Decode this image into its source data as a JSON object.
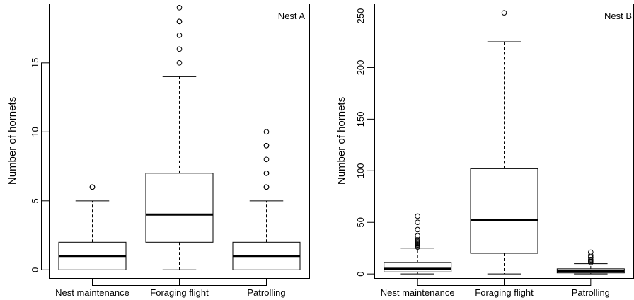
{
  "chart_data": [
    {
      "type": "box",
      "panel_label": "Nest A",
      "ylabel": "Number of hornets",
      "xlabel": "",
      "ylim": [
        -0.6,
        19.3
      ],
      "yticks": [
        0,
        5,
        10,
        15
      ],
      "categories": [
        "Nest maintenance",
        "Foraging flight",
        "Patrolling"
      ],
      "boxes": [
        {
          "category": "Nest maintenance",
          "whisker_low": 0,
          "q1": 0,
          "median": 1,
          "q3": 2,
          "whisker_high": 5,
          "outliers": [
            6,
            6
          ]
        },
        {
          "category": "Foraging flight",
          "whisker_low": 0,
          "q1": 2,
          "median": 4,
          "q3": 7,
          "whisker_high": 14,
          "outliers": [
            15,
            16,
            17,
            18,
            18,
            19
          ]
        },
        {
          "category": "Patrolling",
          "whisker_low": 0,
          "q1": 0,
          "median": 1,
          "q3": 2,
          "whisker_high": 5,
          "outliers": [
            6,
            6,
            7,
            7,
            8,
            9,
            9,
            10
          ]
        }
      ]
    },
    {
      "type": "box",
      "panel_label": "Nest B",
      "ylabel": "Number of hornets",
      "xlabel": "",
      "ylim": [
        -4,
        262
      ],
      "yticks": [
        0,
        50,
        100,
        150,
        200,
        250
      ],
      "categories": [
        "Nest maintenance",
        "Foraging flight",
        "Patrolling"
      ],
      "boxes": [
        {
          "category": "Nest maintenance",
          "whisker_low": 0,
          "q1": 2,
          "median": 5,
          "q3": 11,
          "whisker_high": 25,
          "outliers": [
            26,
            27,
            28,
            29,
            30,
            31,
            32,
            33,
            37,
            43,
            50,
            56
          ]
        },
        {
          "category": "Foraging flight",
          "whisker_low": 0,
          "q1": 20,
          "median": 52,
          "q3": 102,
          "whisker_high": 225,
          "outliers": [
            253
          ]
        },
        {
          "category": "Patrolling",
          "whisker_low": 0,
          "q1": 1,
          "median": 3,
          "q3": 5,
          "whisker_high": 10,
          "outliers": [
            11,
            12,
            13,
            14,
            16,
            18,
            21
          ]
        }
      ]
    }
  ]
}
